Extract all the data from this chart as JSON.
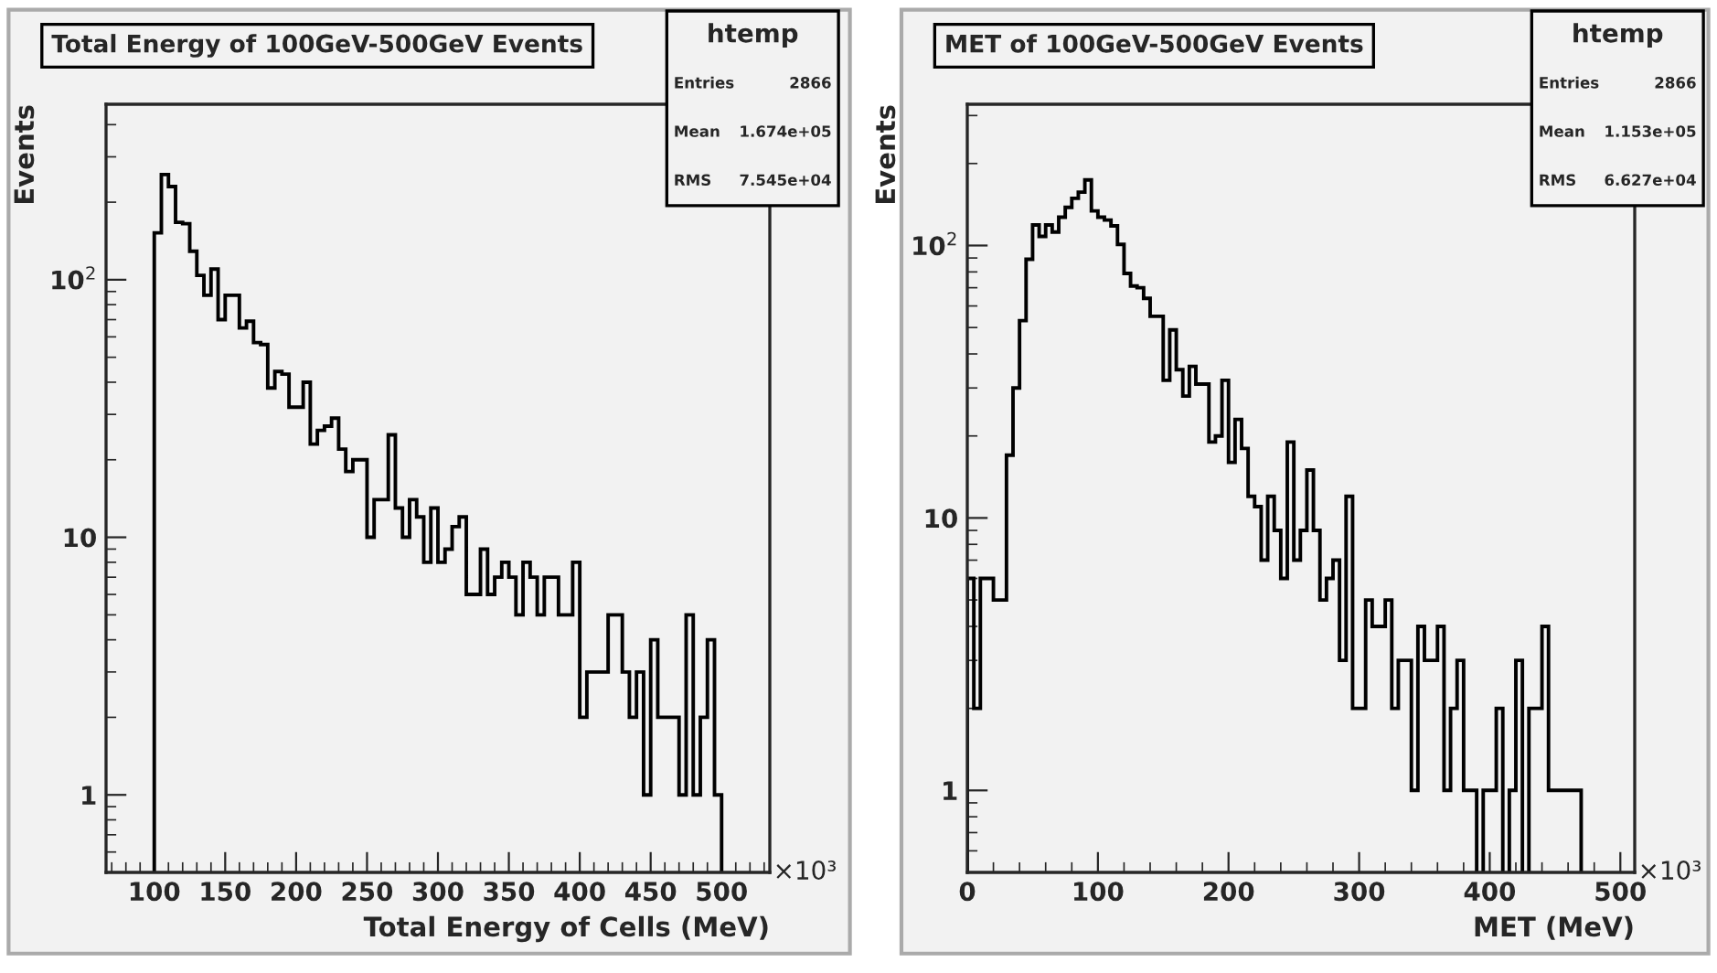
{
  "chart_data": [
    {
      "type": "histogram",
      "title": "Total Energy of 100GeV-500GeV Events",
      "xlabel": "Total Energy of Cells (MeV)",
      "ylabel": "Events",
      "annotations": [
        "×10³",
        "htemp",
        "Entries",
        "2866",
        "Mean",
        "1.674e+05",
        "RMS",
        "7.545e+04"
      ],
      "bins": [
        100,
        105,
        110,
        115,
        120,
        125,
        130,
        135,
        140,
        145,
        150,
        155,
        160,
        165,
        170,
        175,
        180,
        185,
        190,
        195,
        200,
        205,
        210,
        215,
        220,
        225,
        230,
        235,
        240,
        245,
        250,
        255,
        260,
        265,
        270,
        275,
        280,
        285,
        290,
        295,
        300,
        305,
        310,
        315,
        320,
        325,
        330,
        335,
        340,
        345,
        350,
        355,
        360,
        365,
        370,
        375,
        380,
        385,
        390,
        395,
        400,
        405,
        410,
        415,
        420,
        425,
        430,
        435,
        440,
        445,
        450,
        455,
        460,
        465,
        470,
        475,
        480,
        485,
        490,
        495,
        500
      ],
      "values": [
        152,
        256,
        230,
        167,
        165,
        129,
        104,
        87,
        110,
        70,
        87,
        87,
        65,
        69,
        57,
        56,
        38,
        44,
        43,
        32,
        32,
        40,
        23,
        26,
        27,
        29,
        22,
        18,
        20,
        20,
        10,
        14,
        14,
        25,
        13,
        10,
        14,
        12,
        8,
        13,
        8,
        9,
        11,
        12,
        6,
        6,
        9,
        6,
        7,
        8,
        7,
        5,
        8,
        7,
        5,
        7,
        7,
        5,
        5,
        8,
        2,
        3,
        3,
        3,
        5,
        5,
        3,
        2,
        3,
        1,
        4,
        2,
        2,
        2,
        1,
        5,
        1,
        2,
        4,
        1
      ],
      "color": "#000000",
      "log": "y",
      "grid": false,
      "xlim": [
        66,
        534
      ],
      "xticks": [
        100,
        150,
        200,
        250,
        300,
        350,
        400,
        450,
        500
      ],
      "ylim": [
        0.5,
        480
      ],
      "yticks": [
        {
          "value": 1,
          "label": "1"
        },
        {
          "value": 10,
          "label": "10"
        },
        {
          "value": 100,
          "label": "10$^{2}$"
        }
      ]
    },
    {
      "type": "histogram",
      "title": "MET of 100GeV-500GeV Events",
      "xlabel": "MET (MeV)",
      "ylabel": "Events",
      "annotations": [
        "×10³",
        "htemp",
        "Entries",
        "2866",
        "Mean",
        "1.153e+05",
        "RMS",
        "6.627e+04"
      ],
      "bins": [
        0,
        5,
        10,
        15,
        20,
        25,
        30,
        35,
        40,
        45,
        50,
        55,
        60,
        65,
        70,
        75,
        80,
        85,
        90,
        95,
        100,
        105,
        110,
        115,
        120,
        125,
        130,
        135,
        140,
        145,
        150,
        155,
        160,
        165,
        170,
        175,
        180,
        185,
        190,
        195,
        200,
        205,
        210,
        215,
        220,
        225,
        230,
        235,
        240,
        245,
        250,
        255,
        260,
        265,
        270,
        275,
        280,
        285,
        290,
        295,
        300,
        305,
        310,
        315,
        320,
        325,
        330,
        335,
        340,
        345,
        350,
        355,
        360,
        365,
        370,
        375,
        380,
        385,
        390,
        395,
        400,
        405,
        410,
        415,
        420,
        425,
        430,
        435,
        440,
        445,
        450,
        455,
        460,
        465,
        470
      ],
      "values": [
        6,
        2,
        6,
        6,
        5,
        5,
        17,
        30,
        53,
        89,
        119,
        108,
        119,
        112,
        127,
        138,
        149,
        157,
        174,
        134,
        127,
        124,
        118,
        101,
        79,
        71,
        70,
        64,
        55,
        55,
        32,
        49,
        35,
        28,
        36,
        31,
        31,
        19,
        20,
        32,
        16,
        23,
        18,
        12,
        11,
        7,
        12,
        9,
        6,
        19,
        7,
        9,
        15,
        9,
        5,
        6,
        7,
        3,
        12,
        2,
        2,
        5,
        4,
        4,
        5,
        2,
        3,
        3,
        1,
        4,
        3,
        3,
        4,
        1,
        2,
        3,
        1,
        1,
        null,
        1,
        1,
        2,
        null,
        1,
        3,
        null,
        2,
        2,
        4,
        1,
        1,
        1,
        1,
        1
      ],
      "color": "#000000",
      "log": "y",
      "grid": false,
      "xlim": [
        0,
        511
      ],
      "xticks": [
        0,
        100,
        200,
        300,
        400,
        500
      ],
      "ylim": [
        0.5,
        330
      ],
      "yticks": [
        {
          "value": 1,
          "label": "1"
        },
        {
          "value": 10,
          "label": "10"
        },
        {
          "value": 100,
          "label": "10$^{2}$"
        }
      ]
    }
  ]
}
